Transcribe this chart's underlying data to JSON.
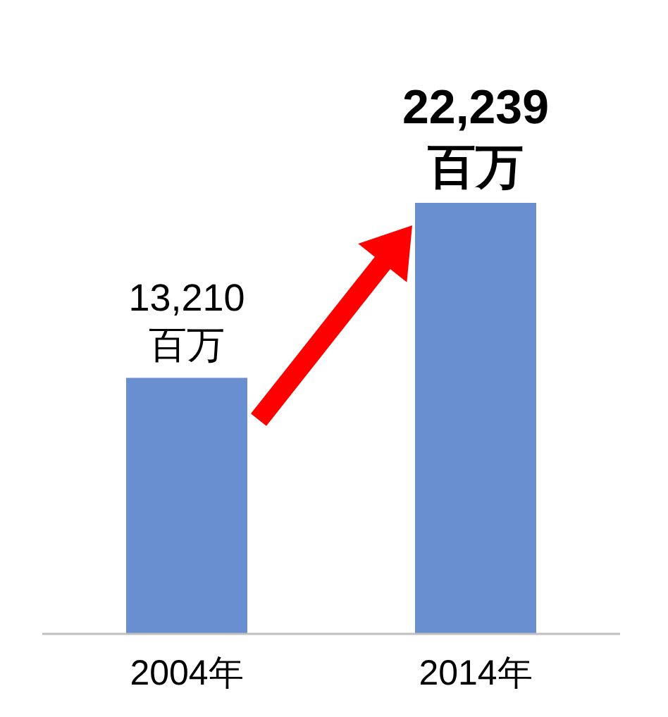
{
  "chart_data": {
    "type": "bar",
    "categories": [
      "2004年",
      "2014年"
    ],
    "values": [
      13210,
      22239
    ],
    "value_labels": [
      "13,210\n百万",
      "22,239\n百万"
    ],
    "color": "#6a8fd0"
  }
}
